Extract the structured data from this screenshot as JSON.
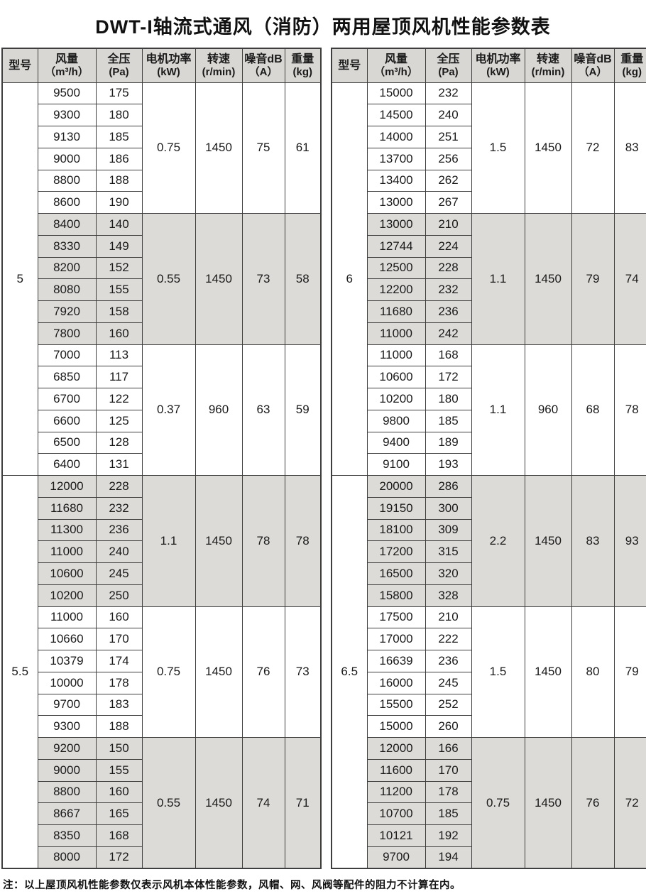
{
  "title": "DWT-I轴流式通风（消防）两用屋顶风机性能参数表",
  "note": "注：以上屋顶风机性能参数仅表示风机本体性能参数，风帽、网、风阀等配件的阻力不计算在内。",
  "colors": {
    "header_bg": "#d8d7d4",
    "shaded_bg": "#dcdbd8",
    "border": "#3e3e3e"
  },
  "columns": [
    {
      "key": "model",
      "line1": "型号",
      "line2": ""
    },
    {
      "key": "airflow",
      "line1": "风量",
      "line2": "（m³/h）"
    },
    {
      "key": "pressure",
      "line1": "全压",
      "line2": "(Pa)"
    },
    {
      "key": "power",
      "line1": "电机功率",
      "line2": "(kW)"
    },
    {
      "key": "speed",
      "line1": "转速",
      "line2": "(r/min)"
    },
    {
      "key": "noise",
      "line1": "噪音dB",
      "line2": "（A）"
    },
    {
      "key": "weight",
      "line1": "重量",
      "line2": "(kg)"
    }
  ],
  "tables": [
    {
      "models": [
        {
          "model": "5",
          "groups": [
            {
              "shaded": false,
              "power": "0.75",
              "speed": "1450",
              "noise": "75",
              "weight": "61",
              "rows": [
                [
                  "9500",
                  "175"
                ],
                [
                  "9300",
                  "180"
                ],
                [
                  "9130",
                  "185"
                ],
                [
                  "9000",
                  "186"
                ],
                [
                  "8800",
                  "188"
                ],
                [
                  "8600",
                  "190"
                ]
              ]
            },
            {
              "shaded": true,
              "power": "0.55",
              "speed": "1450",
              "noise": "73",
              "weight": "58",
              "rows": [
                [
                  "8400",
                  "140"
                ],
                [
                  "8330",
                  "149"
                ],
                [
                  "8200",
                  "152"
                ],
                [
                  "8080",
                  "155"
                ],
                [
                  "7920",
                  "158"
                ],
                [
                  "7800",
                  "160"
                ]
              ]
            },
            {
              "shaded": false,
              "power": "0.37",
              "speed": "960",
              "noise": "63",
              "weight": "59",
              "rows": [
                [
                  "7000",
                  "113"
                ],
                [
                  "6850",
                  "117"
                ],
                [
                  "6700",
                  "122"
                ],
                [
                  "6600",
                  "125"
                ],
                [
                  "6500",
                  "128"
                ],
                [
                  "6400",
                  "131"
                ]
              ]
            }
          ]
        },
        {
          "model": "5.5",
          "groups": [
            {
              "shaded": true,
              "power": "1.1",
              "speed": "1450",
              "noise": "78",
              "weight": "78",
              "rows": [
                [
                  "12000",
                  "228"
                ],
                [
                  "11680",
                  "232"
                ],
                [
                  "11300",
                  "236"
                ],
                [
                  "11000",
                  "240"
                ],
                [
                  "10600",
                  "245"
                ],
                [
                  "10200",
                  "250"
                ]
              ]
            },
            {
              "shaded": false,
              "power": "0.75",
              "speed": "1450",
              "noise": "76",
              "weight": "73",
              "rows": [
                [
                  "11000",
                  "160"
                ],
                [
                  "10660",
                  "170"
                ],
                [
                  "10379",
                  "174"
                ],
                [
                  "10000",
                  "178"
                ],
                [
                  "9700",
                  "183"
                ],
                [
                  "9300",
                  "188"
                ]
              ]
            },
            {
              "shaded": true,
              "power": "0.55",
              "speed": "1450",
              "noise": "74",
              "weight": "71",
              "rows": [
                [
                  "9200",
                  "150"
                ],
                [
                  "9000",
                  "155"
                ],
                [
                  "8800",
                  "160"
                ],
                [
                  "8667",
                  "165"
                ],
                [
                  "8350",
                  "168"
                ],
                [
                  "8000",
                  "172"
                ]
              ]
            }
          ]
        }
      ]
    },
    {
      "models": [
        {
          "model": "6",
          "groups": [
            {
              "shaded": false,
              "power": "1.5",
              "speed": "1450",
              "noise": "72",
              "weight": "83",
              "rows": [
                [
                  "15000",
                  "232"
                ],
                [
                  "14500",
                  "240"
                ],
                [
                  "14000",
                  "251"
                ],
                [
                  "13700",
                  "256"
                ],
                [
                  "13400",
                  "262"
                ],
                [
                  "13000",
                  "267"
                ]
              ]
            },
            {
              "shaded": true,
              "power": "1.1",
              "speed": "1450",
              "noise": "79",
              "weight": "74",
              "rows": [
                [
                  "13000",
                  "210"
                ],
                [
                  "12744",
                  "224"
                ],
                [
                  "12500",
                  "228"
                ],
                [
                  "12200",
                  "232"
                ],
                [
                  "11680",
                  "236"
                ],
                [
                  "11000",
                  "242"
                ]
              ]
            },
            {
              "shaded": false,
              "power": "1.1",
              "speed": "960",
              "noise": "68",
              "weight": "78",
              "rows": [
                [
                  "11000",
                  "168"
                ],
                [
                  "10600",
                  "172"
                ],
                [
                  "10200",
                  "180"
                ],
                [
                  "9800",
                  "185"
                ],
                [
                  "9400",
                  "189"
                ],
                [
                  "9100",
                  "193"
                ]
              ]
            }
          ]
        },
        {
          "model": "6.5",
          "groups": [
            {
              "shaded": true,
              "power": "2.2",
              "speed": "1450",
              "noise": "83",
              "weight": "93",
              "rows": [
                [
                  "20000",
                  "286"
                ],
                [
                  "19150",
                  "300"
                ],
                [
                  "18100",
                  "309"
                ],
                [
                  "17200",
                  "315"
                ],
                [
                  "16500",
                  "320"
                ],
                [
                  "15800",
                  "328"
                ]
              ]
            },
            {
              "shaded": false,
              "power": "1.5",
              "speed": "1450",
              "noise": "80",
              "weight": "79",
              "rows": [
                [
                  "17500",
                  "210"
                ],
                [
                  "17000",
                  "222"
                ],
                [
                  "16639",
                  "236"
                ],
                [
                  "16000",
                  "245"
                ],
                [
                  "15500",
                  "252"
                ],
                [
                  "15000",
                  "260"
                ]
              ]
            },
            {
              "shaded": true,
              "power": "0.75",
              "speed": "1450",
              "noise": "76",
              "weight": "72",
              "rows": [
                [
                  "12000",
                  "166"
                ],
                [
                  "11600",
                  "170"
                ],
                [
                  "11200",
                  "178"
                ],
                [
                  "10700",
                  "185"
                ],
                [
                  "10121",
                  "192"
                ],
                [
                  "9700",
                  "194"
                ]
              ]
            }
          ]
        }
      ]
    }
  ]
}
